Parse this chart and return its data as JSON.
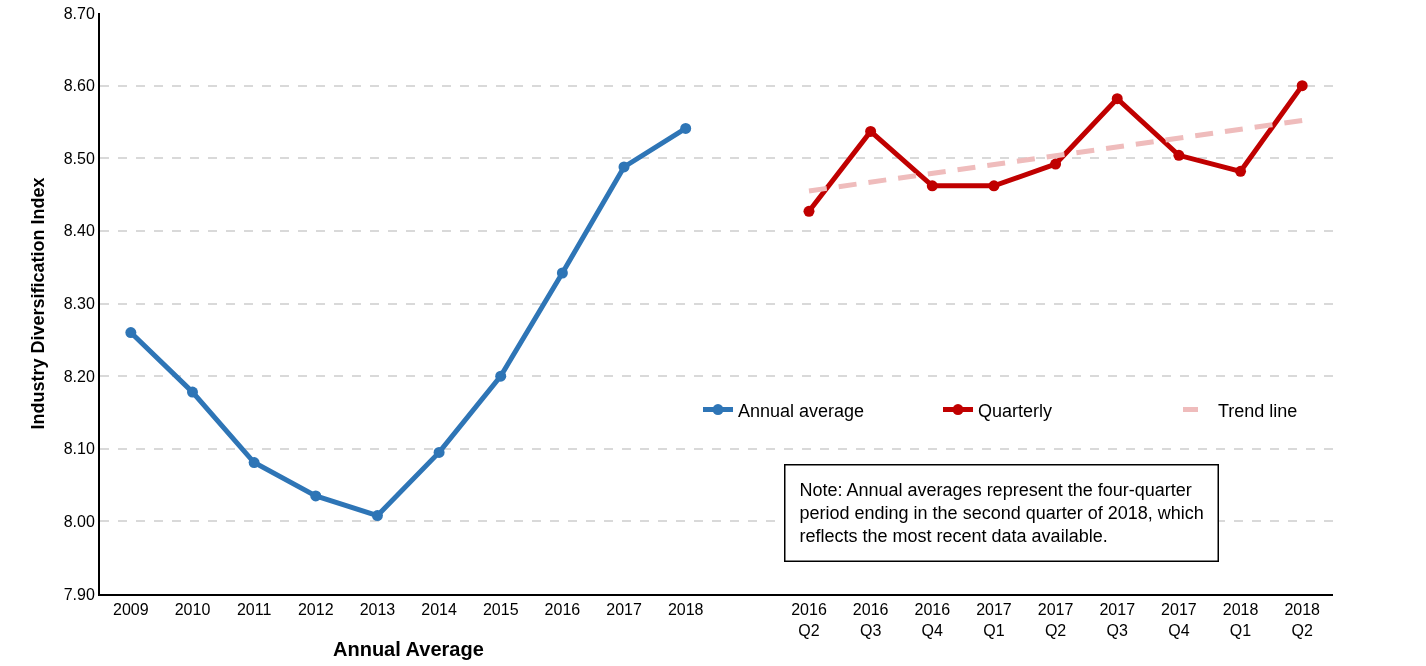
{
  "chart_data": {
    "type": "line",
    "ylabel": "Industry Diversification Index",
    "xlabel": "Annual Average",
    "categories": [
      "2009",
      "2010",
      "2011",
      "2012",
      "2013",
      "2014",
      "2015",
      "2016",
      "2017",
      "2018",
      null,
      "2016\nQ2",
      "2016\nQ3",
      "2016\nQ4",
      "2017\nQ1",
      "2017\nQ2",
      "2017\nQ3",
      "2017\nQ4",
      "2018\nQ1",
      "2018\nQ2"
    ],
    "series": [
      {
        "name": "Annual average",
        "color": "#2e75b6",
        "marker": "circle",
        "values": [
          8.26,
          8.178,
          8.081,
          8.035,
          8.008,
          8.095,
          8.2,
          8.342,
          8.488,
          8.541,
          null,
          null,
          null,
          null,
          null,
          null,
          null,
          null,
          null,
          null
        ]
      },
      {
        "name": "Quarterly",
        "color": "#c00000",
        "marker": "circle",
        "values": [
          null,
          null,
          null,
          null,
          null,
          null,
          null,
          null,
          null,
          null,
          null,
          8.427,
          8.537,
          8.462,
          8.462,
          8.492,
          8.582,
          8.504,
          8.482,
          8.6
        ]
      },
      {
        "name": "Trend line",
        "color": "#efbcbc",
        "marker": "none",
        "line_style": "dashed",
        "x": [
          "2016\nQ2",
          "2018\nQ2"
        ],
        "values": [
          8.455,
          8.552
        ]
      }
    ],
    "ylim": [
      7.9,
      8.7
    ],
    "yticks": [
      {
        "value": 7.9,
        "label": "7.90"
      },
      {
        "value": 8.0,
        "label": "8.00"
      },
      {
        "value": 8.1,
        "label": "8.10"
      },
      {
        "value": 8.2,
        "label": "8.20"
      },
      {
        "value": 8.3,
        "label": "8.30"
      },
      {
        "value": 8.4,
        "label": "8.40"
      },
      {
        "value": 8.5,
        "label": "8.50"
      },
      {
        "value": 8.6,
        "label": "8.60"
      },
      {
        "value": 8.7,
        "label": "8.70"
      }
    ],
    "grid": "y",
    "legend": "right",
    "line_style": "solid",
    "annotations": [
      "Note: Annual averages represent the four-quarter\nperiod ending in the second quarter of 2018, which\nreflects the most recent data available."
    ]
  }
}
